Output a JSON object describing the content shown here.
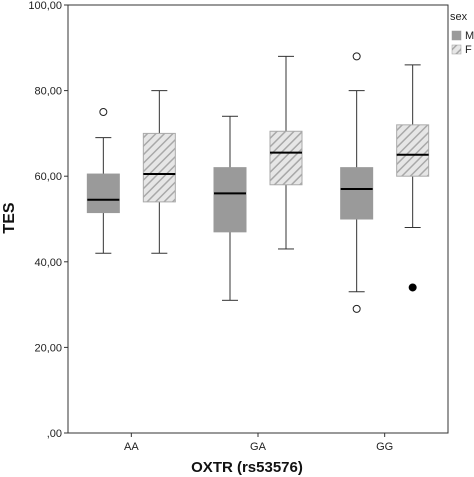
{
  "chart_data": {
    "type": "boxplot",
    "xlabel": "OXTR (rs53576)",
    "ylabel": "TES",
    "ylim": [
      0,
      100
    ],
    "yticks": [
      0,
      20,
      40,
      60,
      80,
      100
    ],
    "ytick_labels": [
      ",00",
      "20,00",
      "40,00",
      "60,00",
      "80,00",
      "100,00"
    ],
    "categories": [
      "AA",
      "GA",
      "GG"
    ],
    "legend": {
      "title": "sex",
      "placement": "top-right",
      "entries": [
        "M",
        "F"
      ]
    },
    "colors": {
      "M": "#9a9a9a",
      "F_bg": "#e6e6e6",
      "F_hatch": "#a8a8a8",
      "median": "#000000"
    },
    "series": [
      {
        "name": "M",
        "fill": "solid",
        "boxes": [
          {
            "category": "AA",
            "whisker_low": 42,
            "q1": 51.5,
            "median": 54.5,
            "q3": 60.5,
            "whisker_high": 69,
            "outliers": [
              75
            ],
            "extremes": []
          },
          {
            "category": "GA",
            "whisker_low": 31,
            "q1": 47,
            "median": 56,
            "q3": 62,
            "whisker_high": 74,
            "outliers": [],
            "extremes": []
          },
          {
            "category": "GG",
            "whisker_low": 33,
            "q1": 50,
            "median": 57,
            "q3": 62,
            "whisker_high": 80,
            "outliers": [
              88,
              29
            ],
            "extremes": []
          }
        ]
      },
      {
        "name": "F",
        "fill": "hatched",
        "boxes": [
          {
            "category": "AA",
            "whisker_low": 42,
            "q1": 54,
            "median": 60.5,
            "q3": 70,
            "whisker_high": 80,
            "outliers": [],
            "extremes": []
          },
          {
            "category": "GA",
            "whisker_low": 43,
            "q1": 58,
            "median": 65.5,
            "q3": 70.5,
            "whisker_high": 88,
            "outliers": [],
            "extremes": []
          },
          {
            "category": "GG",
            "whisker_low": 48,
            "q1": 60,
            "median": 65,
            "q3": 72,
            "whisker_high": 86,
            "outliers": [],
            "extremes": [
              34
            ]
          }
        ]
      }
    ]
  }
}
